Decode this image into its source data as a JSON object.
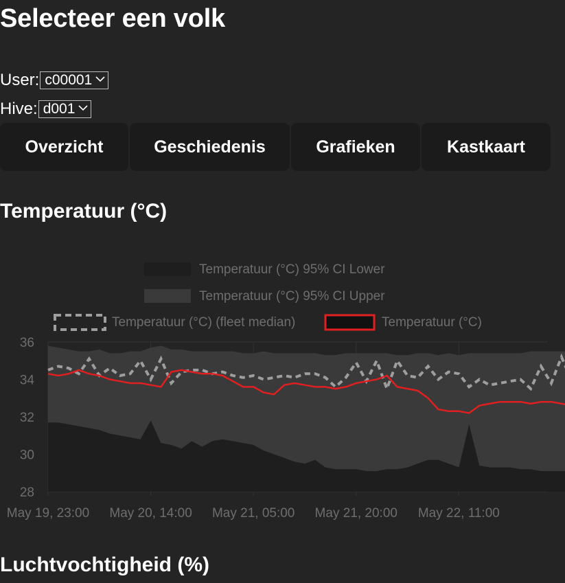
{
  "page": {
    "title": "Selecteer een volk"
  },
  "filters": {
    "user_label": "User:",
    "user_value": "c00001",
    "hive_label": "Hive:",
    "hive_value": "d001"
  },
  "tabs": [
    {
      "label": "Overzicht"
    },
    {
      "label": "Geschiedenis"
    },
    {
      "label": "Grafieken"
    },
    {
      "label": "Kastkaart"
    }
  ],
  "sections": {
    "temperature_title": "Temperatuur (°C)",
    "humidity_title": "Luchtvochtigheid (%)"
  },
  "icons": {
    "dropdown": "chevron-down-icon"
  },
  "colors": {
    "background": "#242424",
    "tab_background": "#1b1b1b",
    "series_temperature": "#e02020",
    "series_median": "#9e9e9e",
    "ci_upper": "#3a3a3a",
    "ci_lower": "#1e1e1e"
  },
  "chart_data": {
    "type": "area",
    "title": "",
    "xlabel": "",
    "ylabel": "",
    "ylim": [
      28,
      36
    ],
    "yticks": [
      28,
      30,
      32,
      34,
      36
    ],
    "x_tick_labels": [
      "May 19, 23:00",
      "May 20, 14:00",
      "May 21, 05:00",
      "May 21, 20:00",
      "May 22, 11:00"
    ],
    "x_ticks": [
      "2024-05-19T23:00",
      "2024-05-20T14:00",
      "2024-05-21T05:00",
      "2024-05-21T20:00",
      "2024-05-22T11:00"
    ],
    "x_range": [
      "2024-05-19T23:00",
      "2024-05-23T00:00"
    ],
    "x_step_hours": 1.5,
    "grid": true,
    "legend_position": "top",
    "series": [
      {
        "name": "Temperatuur (°C) 95% CI Lower",
        "style": "area",
        "values": [
          31.7,
          31.7,
          31.6,
          31.5,
          31.4,
          31.3,
          31.1,
          31.0,
          30.9,
          30.8,
          31.8,
          30.6,
          30.5,
          30.3,
          30.7,
          30.4,
          30.7,
          30.8,
          30.7,
          30.6,
          30.5,
          30.2,
          30.0,
          29.8,
          29.6,
          29.5,
          29.7,
          29.3,
          29.2,
          29.2,
          29.2,
          29.1,
          29.1,
          29.2,
          29.2,
          29.3,
          29.5,
          29.7,
          29.7,
          29.5,
          29.3,
          31.6,
          29.4,
          29.3,
          29.3,
          29.3,
          29.2,
          29.2,
          29.1,
          29.1,
          29.1,
          29.1,
          29.1,
          29.0,
          29.0,
          29.0,
          29.0,
          29.2,
          29.2,
          29.4,
          29.6,
          29.8,
          29.9
        ]
      },
      {
        "name": "Temperatuur (°C) 95% CI Upper",
        "style": "area",
        "values": [
          35.8,
          35.7,
          35.6,
          35.5,
          35.5,
          35.6,
          35.4,
          35.4,
          35.5,
          35.5,
          35.7,
          35.8,
          35.6,
          35.6,
          35.5,
          35.5,
          35.5,
          35.5,
          35.5,
          35.4,
          35.4,
          35.5,
          35.4,
          35.4,
          35.4,
          35.4,
          35.4,
          35.3,
          35.3,
          35.4,
          35.4,
          35.4,
          35.4,
          35.4,
          35.3,
          35.3,
          35.4,
          35.4,
          35.3,
          35.4,
          35.3,
          35.4,
          35.4,
          35.4,
          35.4,
          35.4,
          35.4,
          35.5,
          35.5,
          35.5,
          35.5,
          35.5,
          35.5,
          35.5,
          35.5,
          35.5,
          35.5,
          35.5,
          35.5,
          35.5,
          35.5,
          35.5,
          35.5
        ]
      },
      {
        "name": "Temperatuur (°C) (fleet median)",
        "style": "dashed",
        "values": [
          34.5,
          34.7,
          34.6,
          34.3,
          35.1,
          34.2,
          34.6,
          34.2,
          34.3,
          35.0,
          34.0,
          35.1,
          33.8,
          34.4,
          34.5,
          34.5,
          34.3,
          34.4,
          34.2,
          34.1,
          34.2,
          34.0,
          34.1,
          34.2,
          34.1,
          34.3,
          34.3,
          34.1,
          33.6,
          34.1,
          34.9,
          33.9,
          35.0,
          33.5,
          35.0,
          34.2,
          34.1,
          34.7,
          34.0,
          34.4,
          34.3,
          33.6,
          34.0,
          33.7,
          33.8,
          33.9,
          34.0,
          33.5,
          34.7,
          33.8,
          35.2,
          33.9,
          34.6,
          33.4,
          34.7,
          33.3,
          34.6,
          33.5,
          33.3,
          35.0,
          33.2,
          29.8,
          29.9
        ]
      },
      {
        "name": "Temperatuur (°C)",
        "style": "solid",
        "values": [
          34.3,
          34.2,
          34.3,
          34.5,
          34.3,
          34.2,
          34.0,
          33.9,
          33.8,
          33.8,
          33.7,
          33.6,
          34.4,
          34.5,
          34.4,
          34.3,
          34.3,
          34.2,
          33.9,
          33.6,
          33.6,
          33.3,
          33.2,
          33.7,
          33.8,
          33.7,
          33.6,
          33.6,
          33.5,
          33.6,
          33.8,
          33.9,
          34.0,
          34.2,
          33.6,
          33.5,
          33.4,
          33.0,
          32.4,
          32.3,
          32.3,
          32.2,
          32.6,
          32.7,
          32.8,
          32.8,
          32.8,
          32.7,
          32.8,
          32.8,
          32.7,
          32.6,
          32.2,
          32.1,
          31.9,
          31.9,
          31.8,
          31.7,
          31.6,
          31.9,
          31.5
        ]
      }
    ]
  }
}
